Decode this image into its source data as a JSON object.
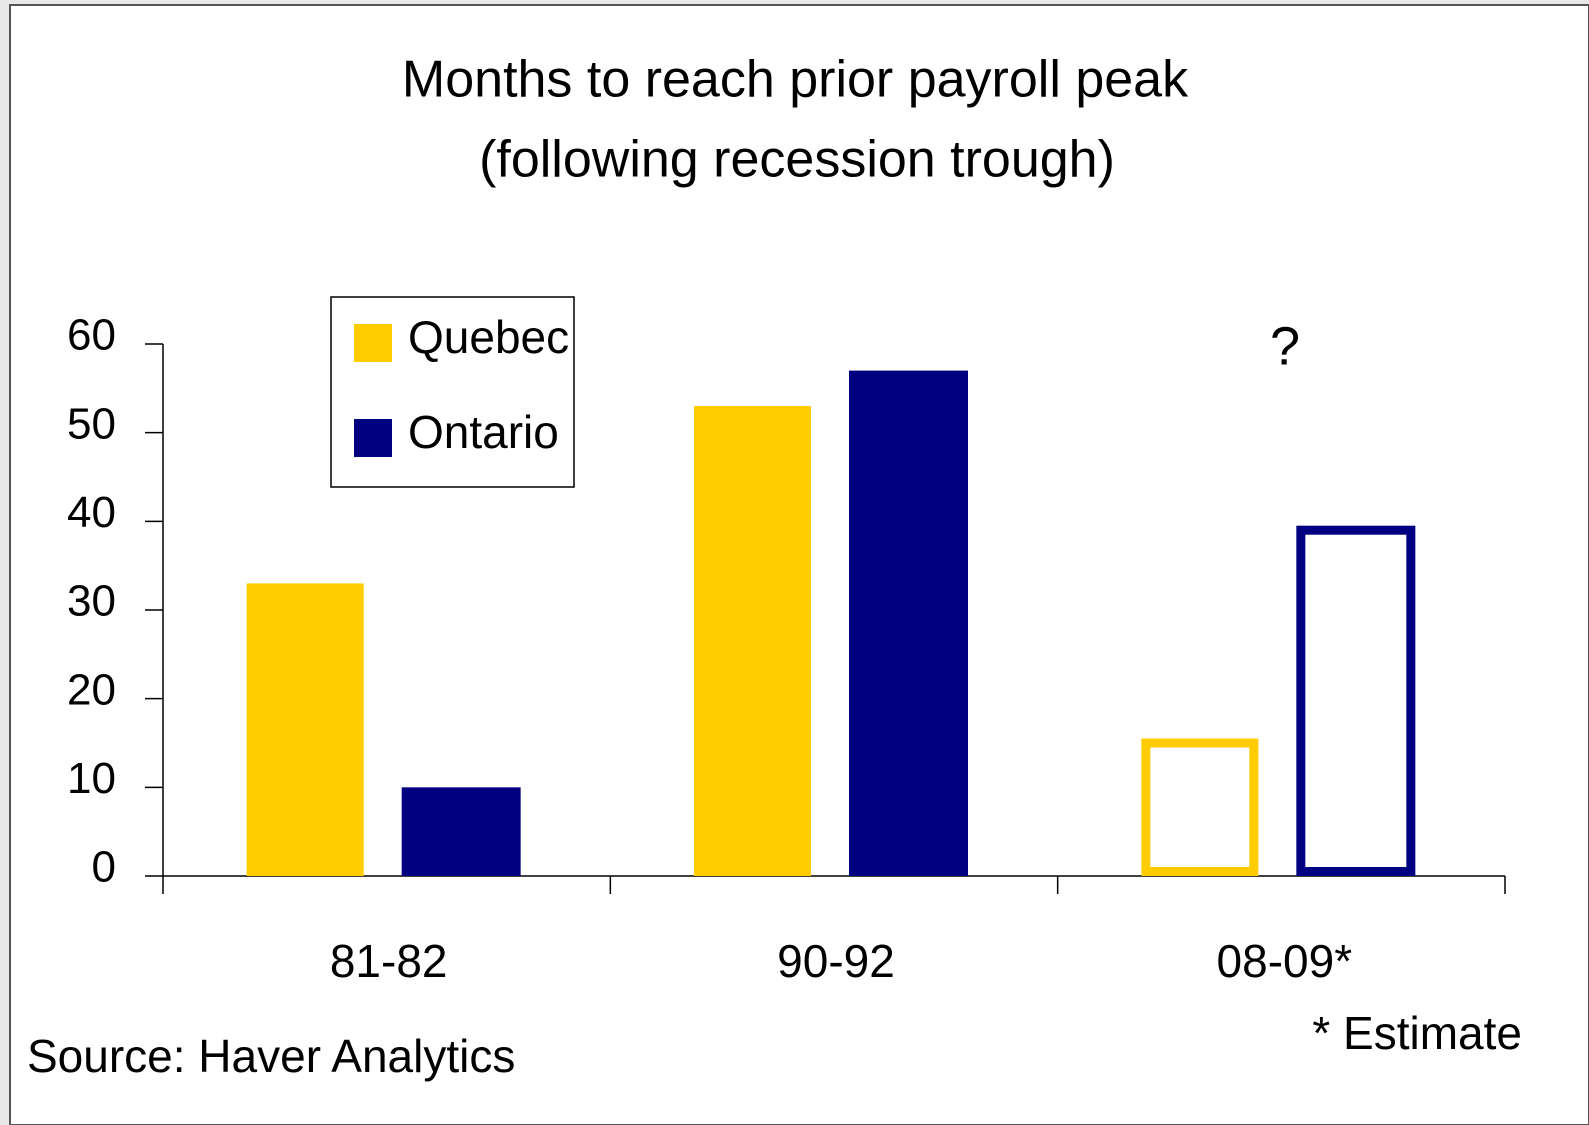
{
  "chart_data": {
    "type": "bar",
    "title": "Months to reach prior payroll peak",
    "subtitle": "(following recession trough)",
    "categories": [
      "81-82",
      "90-92",
      "08-09*"
    ],
    "series": [
      {
        "name": "Quebec",
        "color": "#ffcc00",
        "values": [
          33,
          53,
          15
        ],
        "outline": [
          false,
          false,
          true
        ]
      },
      {
        "name": "Ontario",
        "color": "#000080",
        "values": [
          10,
          57,
          39
        ],
        "outline": [
          false,
          false,
          true
        ]
      }
    ],
    "ylim": [
      0,
      60
    ],
    "yticks": [
      0,
      10,
      20,
      30,
      40,
      50,
      60
    ],
    "grid": false,
    "legend": "top-left",
    "annotations": [
      "?",
      "* Estimate",
      "Source:  Haver Analytics"
    ]
  }
}
